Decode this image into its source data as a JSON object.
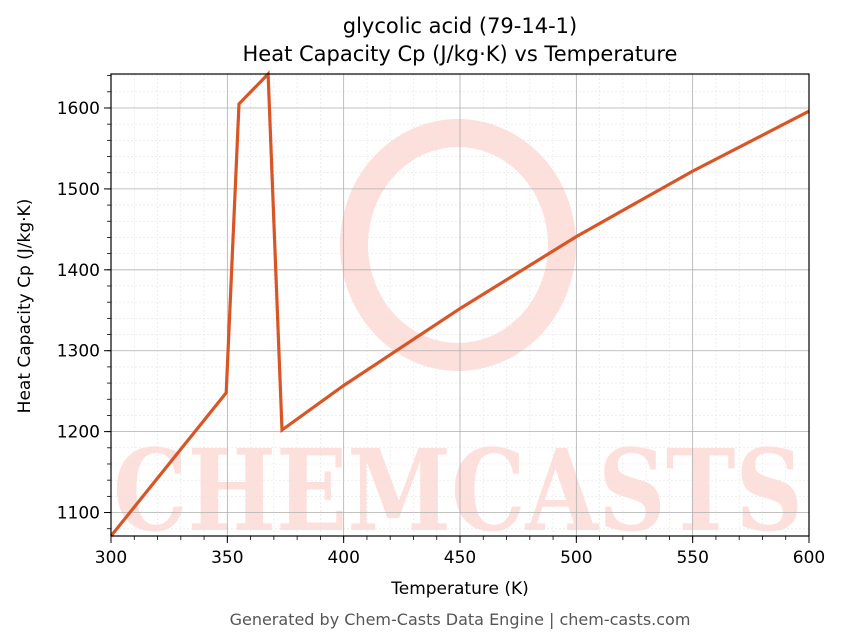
{
  "chart_data": {
    "type": "line",
    "title": "glycolic acid (79-14-1)",
    "subtitle": "Heat Capacity Cp (J/kg·K) vs Temperature",
    "xlabel": "Temperature (K)",
    "ylabel": "Heat Capacity Cp (J/kg·K)",
    "xlim": [
      300,
      600
    ],
    "ylim": [
      1071,
      1642
    ],
    "x_ticks": [
      300,
      350,
      400,
      450,
      500,
      550,
      600
    ],
    "y_ticks": [
      1100,
      1200,
      1300,
      1400,
      1500,
      1600
    ],
    "grid": true,
    "series": [
      {
        "color": "#d95525",
        "x": [
          300,
          349.5,
          355,
          367.5,
          373.5,
          400,
          450,
          500,
          550,
          600
        ],
        "y": [
          1071,
          1248,
          1605,
          1642,
          1202,
          1257,
          1352,
          1441,
          1522,
          1596
        ]
      }
    ]
  },
  "watermark": {
    "text": "CHEMCASTS",
    "color": "#fde0db"
  },
  "footer": "Generated by Chem-Casts Data Engine | chem-casts.com"
}
